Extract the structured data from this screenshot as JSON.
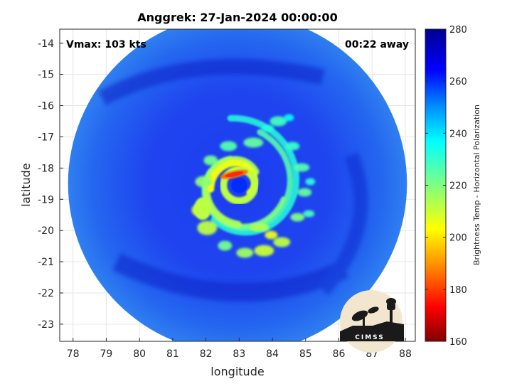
{
  "chart_data": {
    "type": "heatmap",
    "title": "Anggrek: 27-Jan-2024 00:00:00",
    "xlabel": "longitude",
    "ylabel": "latitude",
    "xlim": [
      77.6,
      88.3
    ],
    "ylim": [
      -23.55,
      -13.55
    ],
    "xticks": [
      78,
      79,
      80,
      81,
      82,
      83,
      84,
      85,
      86,
      87,
      88
    ],
    "yticks": [
      -14,
      -15,
      -16,
      -17,
      -18,
      -19,
      -20,
      -21,
      -22,
      -23
    ],
    "grid": true,
    "annotations": {
      "vmax": "Vmax: 103 kts",
      "time_away": "00:22 away"
    },
    "storm_center": {
      "lon": 83.0,
      "lat": -18.55
    },
    "swath": {
      "center_lon": 82.95,
      "center_lat": -18.5,
      "radius_deg": 5.1,
      "clipped_at_lat": -23.55
    },
    "colorbar": {
      "label": "Brightness Temp - Horizontal Polarization",
      "range": [
        160,
        280
      ],
      "ticks": [
        160,
        180,
        200,
        220,
        240,
        260,
        280
      ],
      "colormap": "jet"
    },
    "features": [
      {
        "name": "eye",
        "value_K": 260,
        "lon": 83.0,
        "lat": -18.6
      },
      {
        "name": "eyewall-cold-core",
        "value_K": 178,
        "lon": 82.85,
        "lat": -18.2
      },
      {
        "name": "inner-rainband-west",
        "value_K": 212,
        "lon": 81.9,
        "lat": -19.3
      },
      {
        "name": "rainband-south",
        "value_K": 215,
        "lon": 83.6,
        "lat": -19.9
      }
    ]
  },
  "logo": {
    "text": "CIMSS"
  }
}
